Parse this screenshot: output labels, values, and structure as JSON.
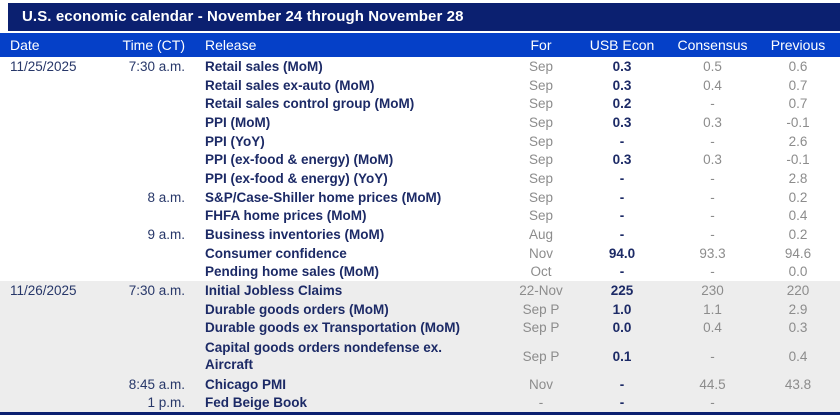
{
  "colors": {
    "title_bar": "#0b2070",
    "header_bar": "#0540c8",
    "release_navy": "#1c2a66",
    "date_time_navy": "#273769",
    "muted_gray": "#8c8c8c",
    "alt_section_bg": "#ededed",
    "header_text": "#ffffff"
  },
  "chart_data": {
    "type": "table",
    "title": "U.S. economic calendar - November 24 through November 28",
    "columns": [
      "Date",
      "Time (CT)",
      "Release",
      "For",
      "USB Econ",
      "Consensus",
      "Previous"
    ],
    "sections": [
      {
        "date": "11/25/2025",
        "rows": [
          {
            "time": "7:30 a.m.",
            "release": "Retail sales (MoM)",
            "for": "Sep",
            "usb_econ": "0.3",
            "consensus": "0.5",
            "previous": "0.6"
          },
          {
            "time": "",
            "release": "Retail sales ex-auto (MoM)",
            "for": "Sep",
            "usb_econ": "0.3",
            "consensus": "0.4",
            "previous": "0.7"
          },
          {
            "time": "",
            "release": "Retail sales control group (MoM)",
            "for": "Sep",
            "usb_econ": "0.2",
            "consensus": "-",
            "previous": "0.7"
          },
          {
            "time": "",
            "release": "PPI (MoM)",
            "for": "Sep",
            "usb_econ": "0.3",
            "consensus": "0.3",
            "previous": "-0.1"
          },
          {
            "time": "",
            "release": "PPI (YoY)",
            "for": "Sep",
            "usb_econ": "-",
            "consensus": "-",
            "previous": "2.6"
          },
          {
            "time": "",
            "release": "PPI (ex-food & energy) (MoM)",
            "for": "Sep",
            "usb_econ": "0.3",
            "consensus": "0.3",
            "previous": "-0.1"
          },
          {
            "time": "",
            "release": "PPI (ex-food & energy) (YoY)",
            "for": "Sep",
            "usb_econ": "-",
            "consensus": "-",
            "previous": "2.8"
          },
          {
            "time": "8 a.m.",
            "release": "S&P/Case-Shiller home prices (MoM)",
            "for": "Sep",
            "usb_econ": "-",
            "consensus": "-",
            "previous": "0.2"
          },
          {
            "time": "",
            "release": "FHFA home prices (MoM)",
            "for": "Sep",
            "usb_econ": "-",
            "consensus": "-",
            "previous": "0.4"
          },
          {
            "time": "9 a.m.",
            "release": "Business inventories (MoM)",
            "for": "Aug",
            "usb_econ": "-",
            "consensus": "-",
            "previous": "0.2"
          },
          {
            "time": "",
            "release": "Consumer confidence",
            "for": "Nov",
            "usb_econ": "94.0",
            "consensus": "93.3",
            "previous": "94.6"
          },
          {
            "time": "",
            "release": "Pending home sales (MoM)",
            "for": "Oct",
            "usb_econ": "-",
            "consensus": "-",
            "previous": "0.0"
          }
        ]
      },
      {
        "date": "11/26/2025",
        "rows": [
          {
            "time": "7:30 a.m.",
            "release": "Initial Jobless Claims",
            "for": "22-Nov",
            "usb_econ": "225",
            "consensus": "230",
            "previous": "220"
          },
          {
            "time": "",
            "release": "Durable goods orders (MoM)",
            "for": "Sep P",
            "usb_econ": "1.0",
            "consensus": "1.1",
            "previous": "2.9"
          },
          {
            "time": "",
            "release": "Durable goods ex Transportation (MoM)",
            "for": "Sep P",
            "usb_econ": "0.0",
            "consensus": "0.4",
            "previous": "0.3"
          },
          {
            "time": "",
            "release": "Capital goods orders nondefense ex.",
            "release_line2": "Aircraft",
            "for": "Sep P",
            "usb_econ": "0.1",
            "consensus": "-",
            "previous": "0.4"
          },
          {
            "time": "8:45 a.m.",
            "release": "Chicago PMI",
            "for": "Nov",
            "usb_econ": "-",
            "consensus": "44.5",
            "previous": "43.8"
          },
          {
            "time": "1 p.m.",
            "release": "Fed Beige Book",
            "for": "-",
            "usb_econ": "-",
            "consensus": "-",
            "previous": ""
          }
        ]
      }
    ]
  }
}
